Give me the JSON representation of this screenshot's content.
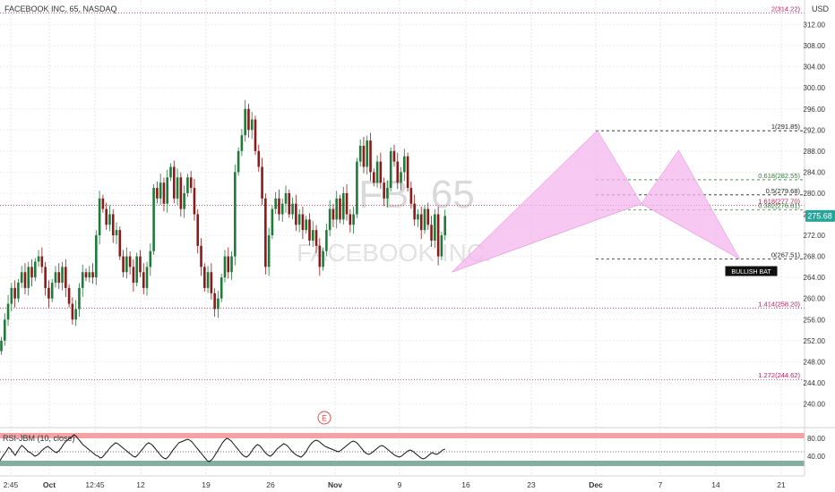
{
  "header": {
    "title": "FACEBOOK INC, 65, NASDAQ",
    "currency": "USD",
    "watermark_symbol": "FB, 65",
    "watermark_name": "FACEBOOK INC."
  },
  "colors": {
    "up": "#1e7b3a",
    "down": "#8b1a1a",
    "pattern_fill": "#f4b6ee",
    "fib_red": "#c2185b",
    "fib_green": "#2e7d32",
    "rsi_upper_band": "#f28b8b",
    "rsi_lower_band": "#6fa08f",
    "price_tag": "#26a69a"
  },
  "chart_data": {
    "type": "candlestick",
    "price_axis": {
      "min": 236,
      "max": 316,
      "ticks": [
        240,
        244,
        248,
        252,
        256,
        260,
        264,
        268,
        272,
        276,
        280,
        284,
        288,
        292,
        296,
        300,
        304,
        308,
        312
      ],
      "current_price": "275.68"
    },
    "time_axis": {
      "ticks": [
        "2:45",
        "Oct",
        "12:45",
        "12",
        "19",
        "26",
        "Nov",
        "9",
        "16",
        "23",
        "Dec",
        "7",
        "14",
        "21"
      ],
      "bold_ticks": [
        "Oct",
        "Nov",
        "Dec"
      ]
    },
    "candles": [
      [
        250,
        252
      ],
      [
        252,
        256
      ],
      [
        256,
        259
      ],
      [
        259,
        262
      ],
      [
        262,
        260
      ],
      [
        260,
        263
      ],
      [
        263,
        265
      ],
      [
        265,
        262
      ],
      [
        262,
        266
      ],
      [
        266,
        264
      ],
      [
        264,
        267
      ],
      [
        267,
        268
      ],
      [
        268,
        266
      ],
      [
        266,
        262
      ],
      [
        262,
        260
      ],
      [
        260,
        263
      ],
      [
        263,
        265
      ],
      [
        265,
        263
      ],
      [
        263,
        266
      ],
      [
        266,
        262
      ],
      [
        262,
        259
      ],
      [
        259,
        256
      ],
      [
        256,
        258
      ],
      [
        258,
        262
      ],
      [
        262,
        265
      ],
      [
        265,
        264
      ],
      [
        264,
        265
      ],
      [
        265,
        264
      ],
      [
        264,
        272
      ],
      [
        272,
        279
      ],
      [
        279,
        277
      ],
      [
        277,
        274
      ],
      [
        274,
        276
      ],
      [
        276,
        272
      ],
      [
        272,
        273
      ],
      [
        273,
        268
      ],
      [
        268,
        265
      ],
      [
        265,
        268
      ],
      [
        268,
        266
      ],
      [
        266,
        263
      ],
      [
        263,
        268
      ],
      [
        268,
        265
      ],
      [
        265,
        262
      ],
      [
        262,
        266
      ],
      [
        266,
        269
      ],
      [
        269,
        281
      ],
      [
        281,
        279
      ],
      [
        279,
        282
      ],
      [
        282,
        278
      ],
      [
        278,
        283
      ],
      [
        283,
        285
      ],
      [
        285,
        279
      ],
      [
        279,
        283
      ],
      [
        283,
        277
      ],
      [
        277,
        280
      ],
      [
        280,
        283
      ],
      [
        283,
        281
      ],
      [
        281,
        276
      ],
      [
        276,
        270
      ],
      [
        270,
        266
      ],
      [
        266,
        262
      ],
      [
        262,
        265
      ],
      [
        265,
        261
      ],
      [
        261,
        258
      ],
      [
        258,
        260
      ],
      [
        260,
        264
      ],
      [
        264,
        268
      ],
      [
        268,
        265
      ],
      [
        265,
        268
      ],
      [
        268,
        284
      ],
      [
        284,
        288
      ],
      [
        288,
        291
      ],
      [
        291,
        296
      ],
      [
        296,
        292
      ],
      [
        292,
        294
      ],
      [
        294,
        288
      ],
      [
        288,
        285
      ],
      [
        285,
        279
      ],
      [
        279,
        266
      ],
      [
        266,
        272
      ],
      [
        272,
        277
      ],
      [
        277,
        279
      ],
      [
        279,
        276
      ],
      [
        276,
        278
      ],
      [
        278,
        280
      ],
      [
        280,
        276
      ],
      [
        276,
        278
      ],
      [
        278,
        274
      ],
      [
        274,
        276
      ],
      [
        276,
        273
      ],
      [
        273,
        275
      ],
      [
        275,
        271
      ],
      [
        271,
        273
      ],
      [
        273,
        270
      ],
      [
        270,
        266
      ],
      [
        266,
        269
      ],
      [
        269,
        273
      ],
      [
        273,
        277
      ],
      [
        277,
        275
      ],
      [
        275,
        279
      ],
      [
        279,
        275
      ],
      [
        275,
        280
      ],
      [
        280,
        276
      ],
      [
        276,
        274
      ],
      [
        274,
        276
      ],
      [
        276,
        286
      ],
      [
        286,
        289
      ],
      [
        289,
        285
      ],
      [
        285,
        290
      ],
      [
        290,
        284
      ],
      [
        284,
        282
      ],
      [
        282,
        286
      ],
      [
        286,
        282
      ],
      [
        282,
        279
      ],
      [
        279,
        281
      ],
      [
        281,
        288
      ],
      [
        288,
        286
      ],
      [
        286,
        282
      ],
      [
        282,
        284
      ],
      [
        284,
        287
      ],
      [
        287,
        281
      ],
      [
        281,
        278
      ],
      [
        278,
        275
      ],
      [
        275,
        276
      ],
      [
        276,
        273
      ],
      [
        273,
        277
      ],
      [
        277,
        274
      ],
      [
        274,
        271
      ],
      [
        271,
        276
      ],
      [
        276,
        268
      ],
      [
        268,
        272
      ],
      [
        272,
        275.68
      ]
    ],
    "bullish_bat": {
      "label": "BULLISH BAT",
      "points": [
        {
          "candle": 133,
          "price": 265.0
        },
        {
          "candle": 176,
          "price": 291.9
        },
        {
          "candle": 189,
          "price": 278.0
        },
        {
          "candle": 200,
          "price": 288.2
        },
        {
          "candle": 218,
          "price": 267.5
        }
      ]
    },
    "fib_levels": [
      {
        "label": "2(314.22)",
        "price": 314.22,
        "style": "red-full"
      },
      {
        "label": "1(291.85)",
        "price": 291.85,
        "style": "black-right"
      },
      {
        "label": "0.618(282.55)",
        "price": 282.55,
        "style": "green-right"
      },
      {
        "label": "0.5(279.68)",
        "price": 279.68,
        "style": "black-right"
      },
      {
        "label": "1.618(277.70)",
        "price": 277.7,
        "style": "red-full"
      },
      {
        "label": "0.382(276.81)",
        "price": 276.81,
        "style": "green-right"
      },
      {
        "label": "0(267.51)",
        "price": 267.51,
        "style": "black-right"
      },
      {
        "label": "1.414(258.20)",
        "price": 258.2,
        "style": "red-full"
      },
      {
        "label": "1.272(244.62)",
        "price": 244.62,
        "style": "red-full"
      }
    ],
    "earnings_marker": "E",
    "rsi": {
      "label": "RSI-JBM (10, close)",
      "ticks": [
        "80.00",
        "40.00"
      ],
      "upper": 80,
      "lower": 40,
      "mid": 50,
      "values": [
        30,
        38,
        45,
        52,
        60,
        55,
        48,
        42,
        50,
        58,
        64,
        60,
        55,
        50,
        48,
        44,
        40,
        42,
        46,
        52,
        56,
        60,
        62,
        58,
        54,
        50,
        48,
        52,
        58,
        66,
        72,
        76,
        80,
        84,
        88,
        84,
        78,
        72,
        66,
        62,
        58,
        54,
        50,
        46,
        42,
        40,
        36,
        38,
        44,
        50,
        56,
        62,
        66,
        70,
        68,
        64,
        60,
        56,
        52,
        48,
        44,
        40,
        38,
        42,
        48,
        54,
        60,
        66,
        70,
        68,
        64,
        58,
        52,
        46,
        40,
        36,
        34,
        38,
        44,
        52,
        58,
        64,
        70,
        72,
        74,
        76,
        78,
        76,
        72,
        66,
        60,
        54,
        48,
        42,
        36,
        30,
        28,
        32,
        38,
        46,
        54,
        62,
        70,
        76,
        80,
        78,
        74,
        68,
        62,
        56,
        50,
        44,
        40,
        38,
        42,
        48,
        56,
        62,
        66,
        64,
        58,
        52,
        46,
        42,
        40,
        44,
        50,
        56,
        60,
        64,
        68,
        66,
        62,
        56,
        50,
        46,
        42,
        40,
        38,
        42,
        48,
        56,
        64,
        70,
        74,
        76,
        74,
        70,
        66,
        62,
        60,
        58,
        56,
        54,
        52,
        50,
        52,
        56,
        60,
        64,
        68,
        72,
        74,
        72,
        68,
        62,
        56,
        50,
        46,
        44,
        46,
        50,
        54,
        58,
        62,
        64,
        62,
        58,
        54,
        50,
        46,
        42,
        40,
        38,
        40,
        44,
        48,
        52,
        54,
        52,
        48,
        44,
        40,
        36,
        34,
        36,
        40,
        44,
        48,
        46,
        44,
        46,
        50,
        54,
        56
      ]
    }
  }
}
